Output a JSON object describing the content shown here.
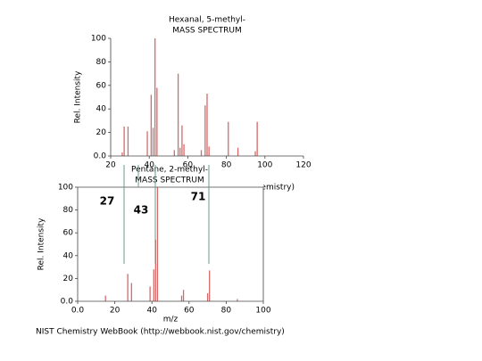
{
  "chart_data": [
    {
      "type": "bar",
      "title": "Hexanal, 5-methyl-",
      "subtitle": "MASS SPECTRUM",
      "ylabel": "Rel. Intensity",
      "footer": "NIST Chemistry WebBook (http://webbook.nist.gov/chemistry)",
      "x": [
        26,
        27,
        29,
        39,
        41,
        42,
        43,
        44,
        53,
        55,
        56,
        57,
        58,
        67,
        69,
        70,
        71,
        81,
        86,
        95,
        96
      ],
      "values": [
        3,
        25,
        25,
        21,
        52,
        24,
        100,
        58,
        5,
        70,
        7,
        26,
        10,
        5,
        43,
        53,
        8,
        29,
        7,
        4,
        29
      ],
      "color": "#d66a6a",
      "frame": "axes",
      "xlim": [
        20,
        120
      ],
      "xticks": [
        20,
        40,
        60,
        80,
        100,
        120
      ],
      "ylim": [
        0,
        100
      ],
      "yticks": [
        {
          "value": 0,
          "label": "0.0"
        },
        20,
        40,
        60,
        80,
        100
      ]
    },
    {
      "type": "bar",
      "title": "Pentane, 2-methyl-",
      "subtitle": "MASS SPECTRUM",
      "ylabel": "Rel. Intensity",
      "xlabel": "m/z",
      "footer": "NIST Chemistry WebBook (http://webbook.nist.gov/chemistry)",
      "annotations": [
        "27",
        "43",
        "71"
      ],
      "x": [
        15,
        27,
        29,
        39,
        41,
        42,
        43,
        56,
        57,
        70,
        71,
        86
      ],
      "values": [
        5,
        24,
        16,
        13,
        28,
        54,
        100,
        5,
        10,
        7,
        27,
        2
      ],
      "color": "#d66a6a",
      "frame": "box",
      "xlim": [
        0,
        100
      ],
      "xticks": [
        {
          "value": 0,
          "label": "0.0"
        },
        20,
        40,
        60,
        80,
        100
      ],
      "ylim": [
        0,
        100
      ],
      "yticks": [
        {
          "value": 0,
          "label": "0.0"
        },
        20,
        40,
        60,
        80,
        100
      ]
    }
  ]
}
